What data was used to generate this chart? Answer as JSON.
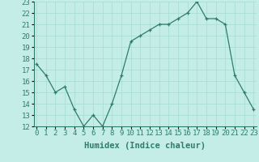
{
  "x": [
    0,
    1,
    2,
    3,
    4,
    5,
    6,
    7,
    8,
    9,
    10,
    11,
    12,
    13,
    14,
    15,
    16,
    17,
    18,
    19,
    20,
    21,
    22,
    23
  ],
  "y": [
    17.5,
    16.5,
    15.0,
    15.5,
    13.5,
    12.0,
    13.0,
    12.0,
    14.0,
    16.5,
    19.5,
    20.0,
    20.5,
    21.0,
    21.0,
    21.5,
    22.0,
    23.0,
    21.5,
    21.5,
    21.0,
    16.5,
    15.0,
    13.5
  ],
  "line_color": "#2E7D6B",
  "marker": "+",
  "marker_size": 3,
  "bg_color": "#C5EDE8",
  "grid_color": "#AADDD6",
  "xlabel": "Humidex (Indice chaleur)",
  "ylim": [
    12,
    23
  ],
  "xlim": [
    -0.3,
    23.3
  ],
  "yticks": [
    12,
    13,
    14,
    15,
    16,
    17,
    18,
    19,
    20,
    21,
    22,
    23
  ],
  "xticks": [
    0,
    1,
    2,
    3,
    4,
    5,
    6,
    7,
    8,
    9,
    10,
    11,
    12,
    13,
    14,
    15,
    16,
    17,
    18,
    19,
    20,
    21,
    22,
    23
  ],
  "xtick_labels": [
    "0",
    "1",
    "2",
    "3",
    "4",
    "5",
    "6",
    "7",
    "8",
    "9",
    "10",
    "11",
    "12",
    "13",
    "14",
    "15",
    "16",
    "17",
    "18",
    "19",
    "20",
    "21",
    "22",
    "23"
  ],
  "xlabel_fontsize": 7.5,
  "tick_fontsize": 6.5,
  "line_width": 0.9,
  "marker_edge_width": 0.9
}
